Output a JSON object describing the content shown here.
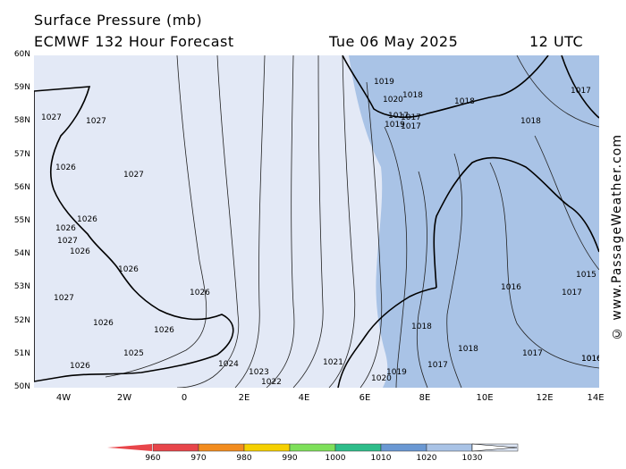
{
  "header": {
    "title": "Surface Pressure (mb)",
    "model": "ECMWF 132 Hour Forecast",
    "date": "Tue 06 May 2025",
    "time": "12 UTC"
  },
  "watermark": "© www.PassageWeather.com",
  "latitudes": [
    "60N",
    "59N",
    "58N",
    "57N",
    "56N",
    "55N",
    "54N",
    "53N",
    "52N",
    "51N",
    "50N"
  ],
  "longitudes": [
    "4W",
    "2W",
    "0",
    "2E",
    "4E",
    "6E",
    "8E",
    "10E",
    "12E",
    "14E"
  ],
  "isobar_labels": [
    "1027",
    "1027",
    "1026",
    "1027",
    "1026",
    "1026",
    "1027",
    "1026",
    "1026",
    "1027",
    "1026",
    "1026",
    "1026",
    "1026",
    "1025",
    "1024",
    "1023",
    "1022",
    "1021",
    "1020",
    "1019",
    "1018",
    "1020",
    "1018",
    "1019",
    "1017",
    "1018",
    "1018",
    "1017",
    "1017",
    "1019",
    "1016",
    "1017",
    "1018",
    "1017",
    "1015",
    "1017",
    "1016",
    "1016",
    "1017"
  ],
  "colorbar": {
    "labels": [
      "960",
      "970",
      "980",
      "990",
      "1000",
      "1010",
      "1020",
      "1030"
    ],
    "colors": [
      "#e8454a",
      "#f28c1e",
      "#f5d000",
      "#7ee05a",
      "#2ebd8a",
      "#6a98d3",
      "#a9c3e6",
      "#dde6f5"
    ],
    "arrow_low": "#e8454a",
    "arrow_high": "#ffffff"
  },
  "colors": {
    "high_pressure_fill": "#e3e9f6",
    "mid_pressure_fill": "#a9c3e6",
    "land_outline": "#000000",
    "isobar": "#222222"
  }
}
